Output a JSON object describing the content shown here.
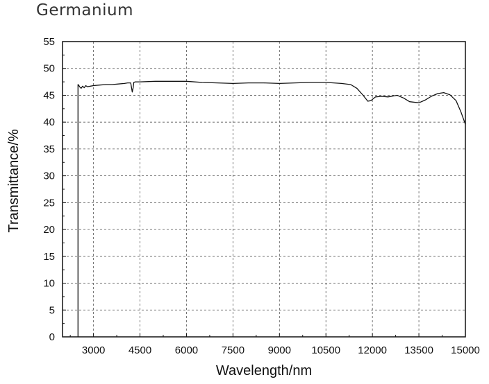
{
  "page": {
    "title": "Germanium"
  },
  "chart_data": {
    "type": "line",
    "title": "",
    "xlabel": "Wavelength/nm",
    "ylabel": "Transmittance/%",
    "xlim": [
      2000,
      15000
    ],
    "ylim": [
      0,
      55
    ],
    "xticks": [
      3000,
      4500,
      6000,
      7500,
      9000,
      10500,
      12000,
      13500,
      15000
    ],
    "yticks": [
      0,
      5,
      10,
      15,
      20,
      25,
      30,
      35,
      40,
      45,
      50,
      55
    ],
    "grid": true,
    "grid_style": "dashed",
    "line_color": "#111111",
    "series": [
      {
        "x": [
          2500,
          2500,
          2520,
          2550,
          2600,
          2650,
          2700,
          2750,
          2800,
          2900,
          3000,
          3200,
          3400,
          3600,
          3800,
          4000,
          4100,
          4200,
          4250,
          4280,
          4300,
          4350,
          4500,
          5000,
          5500,
          6000,
          6500,
          7000,
          7500,
          8000,
          8500,
          9000,
          9500,
          10000,
          10500,
          11000,
          11300,
          11500,
          11700,
          11850,
          11950,
          12100,
          12300,
          12500,
          12800,
          13000,
          13200,
          13500,
          13700,
          13900,
          14100,
          14300,
          14500,
          14700,
          14850,
          15000
        ],
        "y": [
          0,
          47.0,
          46.9,
          46.6,
          46.3,
          46.7,
          46.4,
          46.8,
          46.6,
          46.7,
          46.8,
          46.9,
          47.0,
          47.0,
          47.1,
          47.2,
          47.3,
          47.3,
          45.6,
          46.4,
          47.4,
          47.5,
          47.5,
          47.6,
          47.6,
          47.6,
          47.4,
          47.3,
          47.2,
          47.3,
          47.3,
          47.2,
          47.3,
          47.4,
          47.4,
          47.2,
          47.0,
          46.3,
          45.0,
          43.9,
          44.0,
          44.7,
          44.8,
          44.7,
          45.0,
          44.5,
          43.8,
          43.6,
          44.1,
          44.8,
          45.3,
          45.5,
          45.1,
          44.0,
          42.0,
          39.6
        ]
      }
    ]
  }
}
